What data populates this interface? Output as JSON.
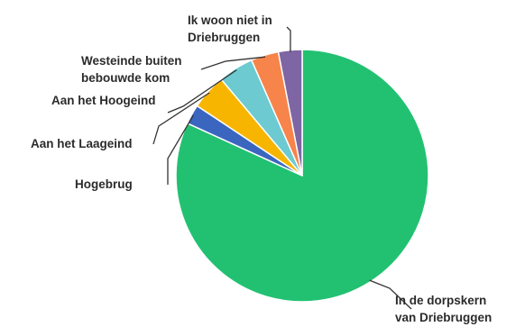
{
  "chart_data": {
    "type": "pie",
    "title": "",
    "slices": [
      {
        "label": [
          "In de dorpskern",
          "van Driebruggen"
        ],
        "value": 81.0,
        "color": "#22c172"
      },
      {
        "label": [
          "Hogebrug"
        ],
        "value": 2.5,
        "color": "#3b66bf"
      },
      {
        "label": [
          "Aan het Laageind"
        ],
        "value": 4.5,
        "color": "#f7b500"
      },
      {
        "label": [
          "Aan het Hoogeind"
        ],
        "value": 4.5,
        "color": "#6ccad0"
      },
      {
        "label": [
          "Westeinde buiten",
          "bebouwde kom"
        ],
        "value": 3.5,
        "color": "#f7844a"
      },
      {
        "label": [
          "Ik woon niet in",
          "Driebruggen"
        ],
        "value": 3.0,
        "color": "#7e65a4"
      }
    ]
  }
}
